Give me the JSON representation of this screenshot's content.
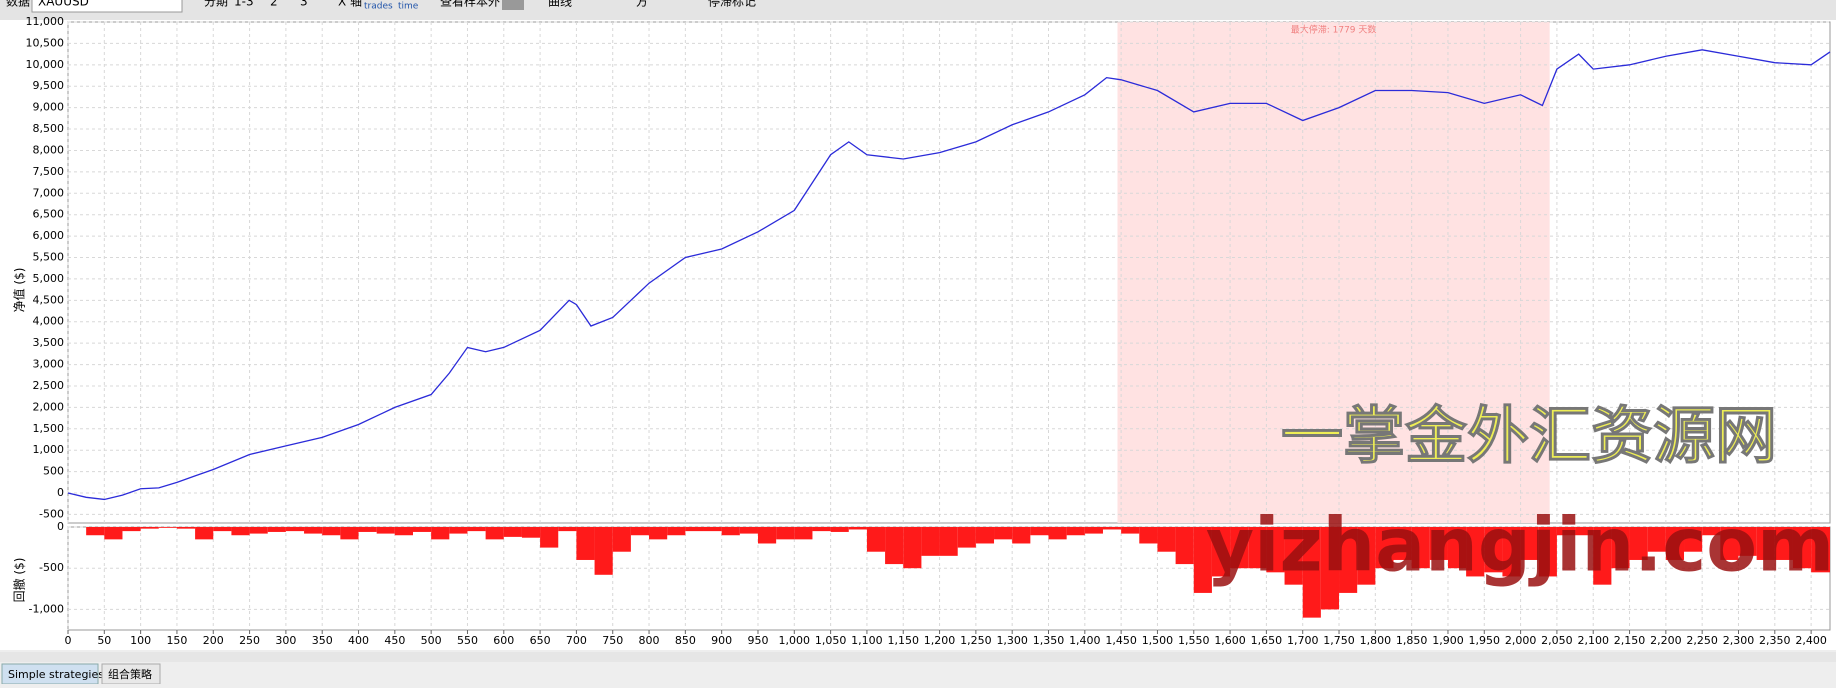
{
  "toolbar": {
    "data_label": "数据",
    "symbol": "XAUUSD",
    "period_label": "分期",
    "period_1": "1-3",
    "period_2": "2",
    "period_3": "3",
    "x_axis_label": "X 轴",
    "x_trades": "trades",
    "x_time": "time",
    "oos_label": "查看样本外",
    "curve_label": "曲线",
    "side_label": "方",
    "stagnation_label": "停滞标记"
  },
  "chart_data": [
    {
      "type": "line",
      "y_label": "净值 ($)",
      "color": "#2b2bd9",
      "grid": true,
      "xlim": [
        0,
        2426
      ],
      "ylim": [
        -700,
        11000
      ],
      "yticks": [
        -500,
        0,
        500,
        {
          "value": 1000,
          "label": "1,000"
        },
        {
          "value": 1500,
          "label": "1,500"
        },
        {
          "value": 2000,
          "label": "2,000"
        },
        {
          "value": 2500,
          "label": "2,500"
        },
        {
          "value": 3000,
          "label": "3,000"
        },
        {
          "value": 3500,
          "label": "3,500"
        },
        {
          "value": 4000,
          "label": "4,000"
        },
        {
          "value": 4500,
          "label": "4,500"
        },
        {
          "value": 5000,
          "label": "5,000"
        },
        {
          "value": 5500,
          "label": "5,500"
        },
        {
          "value": 6000,
          "label": "6,000"
        },
        {
          "value": 6500,
          "label": "6,500"
        },
        {
          "value": 7000,
          "label": "7,000"
        },
        {
          "value": 7500,
          "label": "7,500"
        },
        {
          "value": 8000,
          "label": "8,000"
        },
        {
          "value": 8500,
          "label": "8,500"
        },
        {
          "value": 9000,
          "label": "9,000"
        },
        {
          "value": 9500,
          "label": "9,500"
        },
        {
          "value": 10000,
          "label": "10,000"
        },
        {
          "value": 10500,
          "label": "10,500"
        },
        {
          "value": 11000,
          "label": "11,000"
        }
      ],
      "x": [
        0,
        25,
        50,
        75,
        100,
        125,
        150,
        175,
        200,
        250,
        300,
        350,
        400,
        450,
        500,
        525,
        550,
        575,
        600,
        650,
        690,
        700,
        720,
        750,
        800,
        850,
        900,
        950,
        1000,
        1050,
        1075,
        1100,
        1150,
        1200,
        1250,
        1300,
        1350,
        1400,
        1430,
        1450,
        1500,
        1550,
        1600,
        1650,
        1700,
        1750,
        1800,
        1850,
        1900,
        1950,
        2000,
        2030,
        2050,
        2080,
        2100,
        2150,
        2200,
        2250,
        2300,
        2350,
        2400,
        2426
      ],
      "values": [
        0,
        -100,
        -150,
        -50,
        100,
        120,
        250,
        400,
        550,
        900,
        1100,
        1300,
        1600,
        2000,
        2300,
        2800,
        3400,
        3300,
        3400,
        3800,
        4500,
        4400,
        3900,
        4100,
        4900,
        5500,
        5700,
        6100,
        6600,
        7900,
        8200,
        7900,
        7800,
        7950,
        8200,
        8600,
        8900,
        9300,
        9700,
        9650,
        9400,
        8900,
        9100,
        9100,
        8700,
        9000,
        9400,
        9400,
        9350,
        9100,
        9300,
        9050,
        9900,
        10250,
        9900,
        10000,
        10200,
        10350,
        10200,
        10050,
        10000,
        10300
      ],
      "highlight": {
        "start": 1445,
        "end": 2040,
        "label": "最大停滞: 1779 天数"
      }
    },
    {
      "type": "bar",
      "y_label": "回撤 ($)",
      "color": "#ff1a1a",
      "grid": true,
      "xlim": [
        0,
        2426
      ],
      "ylim": [
        -1250,
        0
      ],
      "yticks": [
        {
          "value": -1000,
          "label": "-1,000"
        },
        -500,
        0
      ],
      "xticks": [
        0,
        50,
        100,
        150,
        200,
        250,
        300,
        350,
        400,
        450,
        500,
        550,
        600,
        650,
        700,
        750,
        800,
        850,
        900,
        950,
        {
          "value": 1000,
          "label": "1,000"
        },
        {
          "value": 1050,
          "label": "1,050"
        },
        {
          "value": 1100,
          "label": "1,100"
        },
        {
          "value": 1150,
          "label": "1,150"
        },
        {
          "value": 1200,
          "label": "1,200"
        },
        {
          "value": 1250,
          "label": "1,250"
        },
        {
          "value": 1300,
          "label": "1,300"
        },
        {
          "value": 1350,
          "label": "1,350"
        },
        {
          "value": 1400,
          "label": "1,400"
        },
        {
          "value": 1450,
          "label": "1,450"
        },
        {
          "value": 1500,
          "label": "1,500"
        },
        {
          "value": 1550,
          "label": "1,550"
        },
        {
          "value": 1600,
          "label": "1,600"
        },
        {
          "value": 1650,
          "label": "1,650"
        },
        {
          "value": 1700,
          "label": "1,700"
        },
        {
          "value": 1750,
          "label": "1,750"
        },
        {
          "value": 1800,
          "label": "1,800"
        },
        {
          "value": 1850,
          "label": "1,850"
        },
        {
          "value": 1900,
          "label": "1,900"
        },
        {
          "value": 1950,
          "label": "1,950"
        },
        {
          "value": 2000,
          "label": "2,000"
        },
        {
          "value": 2050,
          "label": "2,050"
        },
        {
          "value": 2100,
          "label": "2,100"
        },
        {
          "value": 2150,
          "label": "2,150"
        },
        {
          "value": 2200,
          "label": "2,200"
        },
        {
          "value": 2250,
          "label": "2,250"
        },
        {
          "value": 2300,
          "label": "2,300"
        },
        {
          "value": 2350,
          "label": "2,350"
        },
        {
          "value": 2400,
          "label": "2,400"
        }
      ],
      "x": [
        0,
        25,
        50,
        75,
        100,
        125,
        150,
        175,
        200,
        225,
        250,
        275,
        300,
        325,
        350,
        375,
        400,
        425,
        450,
        475,
        500,
        525,
        550,
        575,
        600,
        625,
        650,
        675,
        700,
        725,
        750,
        775,
        800,
        825,
        850,
        875,
        900,
        925,
        950,
        975,
        1000,
        1025,
        1050,
        1075,
        1100,
        1125,
        1150,
        1175,
        1200,
        1225,
        1250,
        1275,
        1300,
        1325,
        1350,
        1375,
        1400,
        1425,
        1450,
        1475,
        1500,
        1525,
        1550,
        1575,
        1600,
        1625,
        1650,
        1675,
        1700,
        1725,
        1750,
        1775,
        1800,
        1825,
        1850,
        1875,
        1900,
        1925,
        1950,
        1975,
        2000,
        2025,
        2050,
        2075,
        2100,
        2125,
        2150,
        2175,
        2200,
        2225,
        2250,
        2275,
        2300,
        2325,
        2350,
        2375,
        2400
      ],
      "values": [
        0,
        -100,
        -150,
        -50,
        -20,
        -10,
        -20,
        -150,
        -50,
        -100,
        -80,
        -60,
        -50,
        -80,
        -100,
        -150,
        -60,
        -80,
        -100,
        -60,
        -150,
        -80,
        -50,
        -150,
        -120,
        -130,
        -250,
        -50,
        -400,
        -580,
        -300,
        -100,
        -150,
        -100,
        -50,
        -50,
        -100,
        -80,
        -200,
        -150,
        -150,
        -50,
        -60,
        -30,
        -300,
        -450,
        -500,
        -350,
        -350,
        -250,
        -200,
        -150,
        -200,
        -100,
        -150,
        -100,
        -80,
        -30,
        -80,
        -200,
        -300,
        -450,
        -800,
        -600,
        -500,
        -500,
        -550,
        -700,
        -1100,
        -1000,
        -800,
        -700,
        -500,
        -400,
        -500,
        -400,
        -500,
        -600,
        -550,
        -600,
        -400,
        -600,
        -100,
        -100,
        -700,
        -500,
        -400,
        -300,
        -400,
        -300,
        -100,
        -400,
        -350,
        -400,
        -400,
        -500,
        -550
      ]
    }
  ],
  "watermark": {
    "cn": "一掌金外汇资源网",
    "url": "yizhangjin.com"
  },
  "tabs": [
    "Simple strategies",
    "组合策略"
  ]
}
